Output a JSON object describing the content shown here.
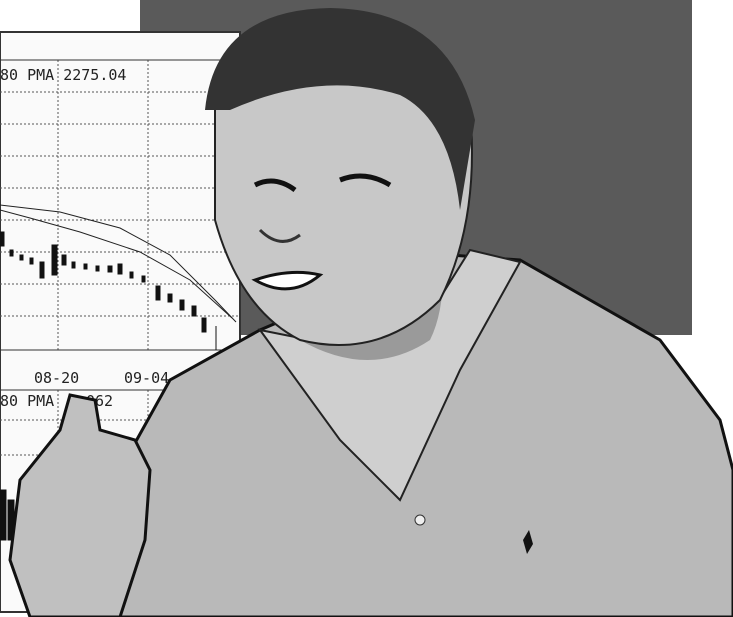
{
  "chart_panel": {
    "upper_label": "80 PMA 2275.04",
    "dates": [
      "08-20",
      "09-04"
    ],
    "lower_label": "80 PMA",
    "lower_value_fragment": "062"
  }
}
